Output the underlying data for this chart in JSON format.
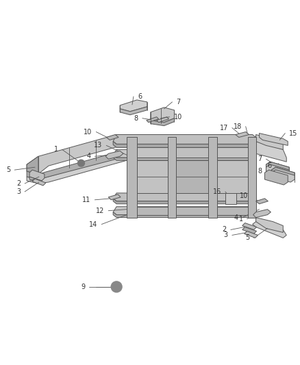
{
  "bg_color": "#ffffff",
  "lc": "#555555",
  "lw": 0.7,
  "figsize": [
    4.38,
    5.33
  ],
  "dpi": 100,
  "label_fs": 7.0,
  "label_color": "#333333",
  "parts": {
    "left_rail": {
      "fc": "#c8c8c8"
    },
    "center_rail_top": {
      "fc": "#c0c0c0"
    },
    "center_rail_bot": {
      "fc": "#c8c8c8"
    },
    "panel_dark": {
      "fc": "#a8a8a8"
    },
    "panel_light": {
      "fc": "#b8b8b8"
    },
    "bracket": {
      "fc": "#c0c0c0"
    },
    "small_block": {
      "fc": "#b0b0b0"
    }
  }
}
